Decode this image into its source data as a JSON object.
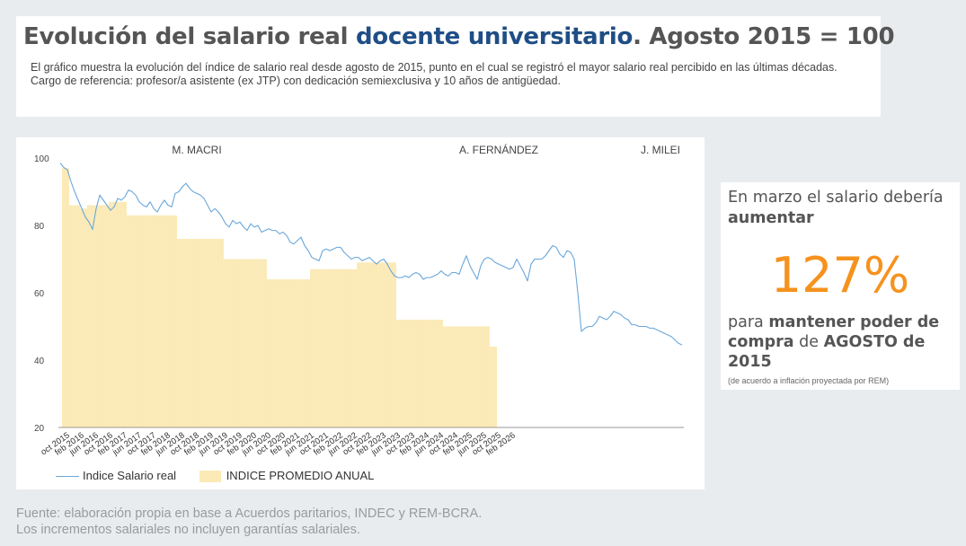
{
  "header": {
    "title_part1": "Evolución del salario real ",
    "title_highlight": "docente universitario",
    "title_part2": ". Agosto 2015 = 100",
    "desc_line1": "El gráfico muestra la evolución del índice de salario real desde agosto de 2015, punto en el cual se registró el mayor salario real percibido en las últimas décadas.",
    "desc_line2": "Cargo de referencia: profesor/a asistente (ex JTP) con dedicación semiexclusiva y 10 años de antigüedad."
  },
  "side": {
    "line1": "En marzo el salario debería ",
    "line1_bold": "aumentar",
    "pct": "127%",
    "b1": "para ",
    "b2": "mantener poder de compra",
    "b3": " de ",
    "b4": "AGOSTO de 2015",
    "note": "(de acuerdo a inflación proyectada por REM)"
  },
  "footer": {
    "line1": "Fuente: elaboración propia en base a Acuerdos paritarios, INDEC y REM-BCRA.",
    "line2": "Los incrementos salariales no incluyen garantías salariales."
  },
  "colors": {
    "line": "#6aa7da",
    "bar": "#fbeab6",
    "accent": "#f5921e",
    "title_highlight": "#1f4e86"
  },
  "chart_data": {
    "type": "line",
    "ylim": [
      20,
      100
    ],
    "yticks": [
      20,
      40,
      60,
      80,
      100
    ],
    "grid": false,
    "legend_position": "bottom-left",
    "x_tick_labels": [
      "oct 2015",
      "feb 2016",
      "jun 2016",
      "oct 2016",
      "feb 2017",
      "jun 2017",
      "oct 2017",
      "feb 2018",
      "jun 2018",
      "oct 2018",
      "feb 2019",
      "jun 2019",
      "oct 2019",
      "feb 2020",
      "jun 2020",
      "oct 2020",
      "feb 2021",
      "jun 2021",
      "oct 2021",
      "feb 2022",
      "jun 2022",
      "oct 2022",
      "feb 2023",
      "jun 2023",
      "oct 2023",
      "feb 2024",
      "jun 2024",
      "oct 2024",
      "feb 2025",
      "jun 2025",
      "oct 2025",
      "feb 2026"
    ],
    "annotations": [
      {
        "text": "M. MACRI",
        "month_index": 38
      },
      {
        "text": "A. FERNÁNDEZ",
        "month_index": 122
      },
      {
        "text": "J. MILEI",
        "month_index": 167
      }
    ],
    "series": [
      {
        "name": "Indice Salario real",
        "kind": "line",
        "start": "2015-08",
        "values": [
          98.5,
          97.2,
          96.5,
          93.0,
          90.0,
          87.5,
          85.0,
          82.5,
          81.0,
          78.8,
          85.0,
          89.0,
          87.5,
          86.0,
          84.5,
          85.5,
          88.0,
          87.5,
          88.5,
          90.5,
          90.0,
          89.0,
          87.0,
          86.0,
          85.5,
          87.0,
          85.0,
          84.0,
          86.0,
          87.5,
          86.0,
          85.5,
          89.5,
          90.0,
          91.5,
          92.5,
          91.0,
          90.0,
          89.5,
          89.0,
          88.0,
          86.0,
          84.0,
          85.0,
          84.0,
          82.5,
          80.5,
          79.5,
          81.5,
          80.5,
          81.0,
          79.5,
          78.5,
          80.5,
          79.5,
          80.0,
          78.0,
          78.5,
          79.0,
          78.5,
          78.5,
          77.5,
          78.0,
          77.0,
          75.0,
          74.5,
          75.5,
          76.5,
          74.0,
          72.5,
          70.5,
          70.0,
          69.5,
          72.5,
          73.0,
          72.5,
          73.0,
          73.5,
          73.5,
          72.0,
          71.0,
          70.0,
          70.5,
          70.5,
          69.5,
          70.0,
          70.5,
          69.5,
          68.5,
          69.5,
          70.0,
          68.5,
          66.5,
          65.0,
          64.5,
          64.5,
          65.0,
          64.5,
          65.5,
          66.0,
          65.5,
          64.0,
          64.5,
          64.5,
          65.0,
          65.5,
          66.5,
          65.5,
          65.0,
          66.0,
          66.0,
          65.5,
          68.5,
          71.0,
          68.0,
          66.0,
          64.0,
          68.0,
          70.0,
          70.5,
          70.0,
          69.0,
          68.5,
          68.0,
          67.5,
          67.0,
          67.5,
          70.0,
          68.0,
          66.0,
          63.5,
          68.5,
          70.0,
          70.0,
          70.0,
          71.0,
          72.5,
          74.0,
          73.5,
          71.5,
          70.5,
          72.5,
          72.0,
          70.0,
          60.0,
          48.5,
          49.5,
          50.0,
          50.0,
          51.0,
          53.0,
          52.5,
          52.0,
          53.0,
          54.5,
          54.0,
          53.5,
          52.5,
          52.0,
          50.5,
          50.5,
          50.0,
          50.0,
          50.0,
          49.5,
          49.5,
          49.0,
          48.5,
          48.0,
          47.5,
          47.0,
          46.0,
          45.0,
          44.5
        ]
      },
      {
        "name": "INDICE PROMEDIO ANUAL",
        "kind": "bar",
        "values": [
          97,
          97,
          86,
          86,
          86,
          85,
          85,
          86,
          86,
          86,
          86,
          86,
          86,
          87,
          87,
          87,
          87,
          87,
          83,
          83,
          83,
          83,
          83,
          83,
          83,
          83,
          83,
          83,
          83,
          83,
          83,
          83,
          76,
          76,
          76,
          76,
          76,
          76,
          76,
          76,
          76,
          76,
          76,
          76,
          76,
          70,
          70,
          70,
          70,
          70,
          70,
          70,
          70,
          70,
          70,
          70,
          70,
          64,
          64,
          64,
          64,
          64,
          64,
          64,
          64,
          64,
          64,
          64,
          64,
          67,
          67,
          67,
          67,
          67,
          67,
          67,
          67,
          67,
          67,
          67,
          67,
          67,
          69,
          69,
          69,
          69,
          69,
          69,
          69,
          69,
          69,
          69,
          69,
          52,
          52,
          52,
          52,
          52,
          52,
          52,
          52,
          52,
          52,
          52,
          52,
          52,
          50,
          50,
          50,
          50,
          50,
          50,
          50,
          50,
          50,
          50,
          50,
          50,
          50,
          44,
          44
        ]
      }
    ]
  }
}
